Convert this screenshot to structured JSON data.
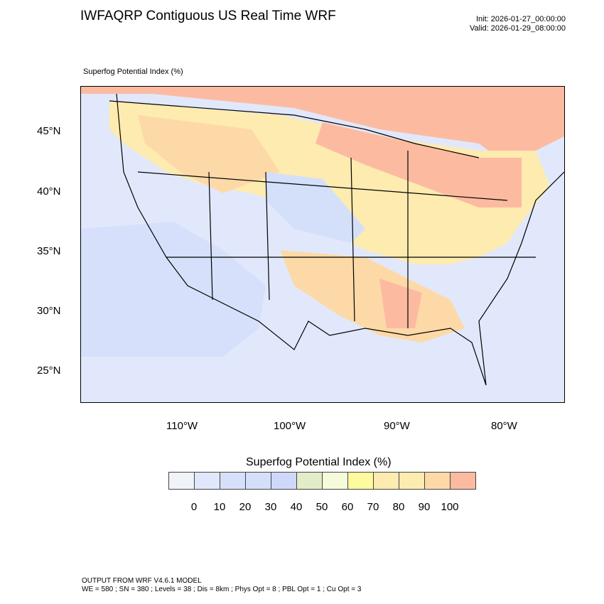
{
  "header": {
    "title": "IWFAQRP Contiguous US Real Time WRF",
    "init": "Init: 2026-01-27_00:00:00",
    "valid": "Valid: 2026-01-29_08:00:00"
  },
  "field_title": "Superfog Potential Index   (%)",
  "map": {
    "lat_labels": [
      "45°N",
      "40°N",
      "35°N",
      "30°N",
      "25°N"
    ],
    "lon_labels": [
      "110°W",
      "100°W",
      "90°W",
      "80°W"
    ],
    "ocean_color": "#e1e8fb",
    "high_color": "#fcbba1"
  },
  "colorbar": {
    "title": "Superfog Potential Index  (%)",
    "colors": [
      "#f0f3f8",
      "#e1e8fb",
      "#d6e0fb",
      "#d4dffa",
      "#cfd8fa",
      "#e1ecc9",
      "#f6fbdc",
      "#fdfb9d",
      "#fdebb0",
      "#fdecb0",
      "#fdd9a8",
      "#fcbba1"
    ],
    "labels": [
      "0",
      "10",
      "20",
      "30",
      "40",
      "50",
      "60",
      "70",
      "80",
      "90",
      "100"
    ]
  },
  "footer": {
    "line1": "OUTPUT FROM WRF V4.6.1 MODEL",
    "line2": "WE = 580 ; SN = 380 ; Levels = 38 ; Dis = 8km ; Phys Opt = 8 ; PBL Opt = 1 ; Cu Opt = 3"
  }
}
